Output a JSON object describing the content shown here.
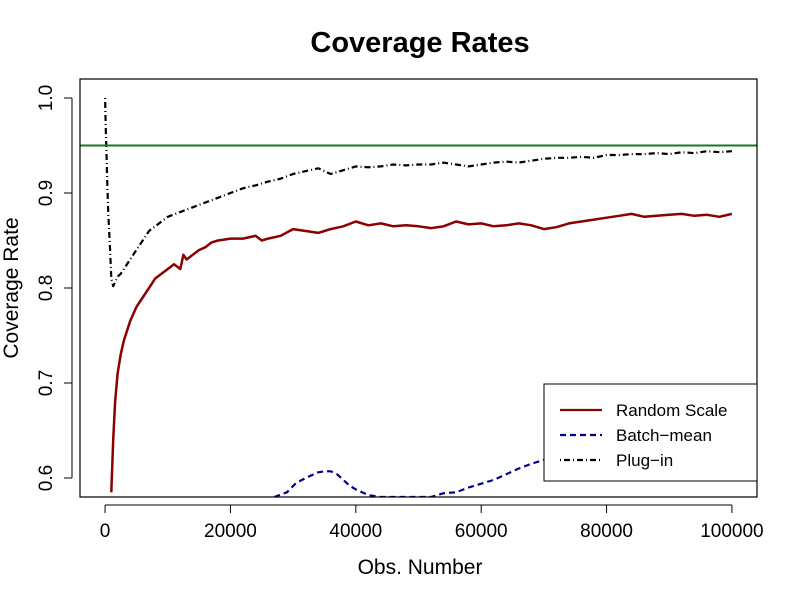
{
  "chart_data": {
    "type": "line",
    "title": "Coverage Rates",
    "xlabel": "Obs. Number",
    "ylabel": "Coverage Rate",
    "xlim": [
      -4000,
      104000
    ],
    "ylim": [
      0.58,
      1.02
    ],
    "x_ticks": [
      0,
      20000,
      40000,
      60000,
      80000,
      100000
    ],
    "x_tick_labels": [
      "0",
      "20000",
      "40000",
      "60000",
      "80000",
      "100000"
    ],
    "y_ticks": [
      0.6,
      0.7,
      0.8,
      0.9,
      1.0
    ],
    "y_tick_labels": [
      "0.6",
      "0.7",
      "0.8",
      "0.9",
      "1.0"
    ],
    "grid": false,
    "legend_position": "bottom-right",
    "reference_line": {
      "y": 0.95,
      "color": "#1a7a1a"
    },
    "series": [
      {
        "name": "Random Scale",
        "color": "#8b0000",
        "style": "solid",
        "x": [
          1000,
          1300,
          1600,
          2000,
          2500,
          3000,
          3500,
          4000,
          5000,
          6000,
          7000,
          8000,
          9000,
          10000,
          11000,
          12000,
          12500,
          13000,
          14000,
          15000,
          16000,
          17000,
          18000,
          19000,
          20000,
          22000,
          24000,
          25000,
          26000,
          28000,
          30000,
          32000,
          34000,
          35000,
          36000,
          38000,
          40000,
          42000,
          44000,
          46000,
          48000,
          50000,
          52000,
          54000,
          56000,
          58000,
          60000,
          62000,
          64000,
          66000,
          68000,
          70000,
          72000,
          74000,
          76000,
          78000,
          80000,
          82000,
          84000,
          86000,
          88000,
          90000,
          92000,
          94000,
          96000,
          98000,
          100000
        ],
        "y": [
          0.585,
          0.64,
          0.68,
          0.71,
          0.73,
          0.745,
          0.755,
          0.765,
          0.78,
          0.79,
          0.8,
          0.81,
          0.815,
          0.82,
          0.825,
          0.82,
          0.835,
          0.83,
          0.835,
          0.84,
          0.843,
          0.848,
          0.85,
          0.851,
          0.852,
          0.852,
          0.855,
          0.85,
          0.852,
          0.855,
          0.862,
          0.86,
          0.858,
          0.86,
          0.862,
          0.865,
          0.87,
          0.866,
          0.868,
          0.865,
          0.866,
          0.865,
          0.863,
          0.865,
          0.87,
          0.867,
          0.868,
          0.865,
          0.866,
          0.868,
          0.866,
          0.862,
          0.864,
          0.868,
          0.87,
          0.872,
          0.874,
          0.876,
          0.878,
          0.875,
          0.876,
          0.877,
          0.878,
          0.876,
          0.877,
          0.875,
          0.878
        ]
      },
      {
        "name": "Batch−mean",
        "color": "#00008b",
        "style": "dashed",
        "x": [
          27000,
          29000,
          30500,
          32000,
          33000,
          34000,
          35000,
          36000,
          37000,
          38000,
          39000,
          40000,
          41000,
          42000,
          44000,
          46000,
          48000,
          50000,
          52000,
          53000,
          54000,
          56000,
          58000,
          60000,
          62000,
          64000,
          66000,
          68000,
          70000,
          72000,
          74000,
          76000,
          78000,
          80000,
          82000,
          84000,
          86000,
          88000,
          90000,
          92000,
          94000,
          96000,
          98000,
          100000
        ],
        "y": [
          0.58,
          0.585,
          0.595,
          0.6,
          0.603,
          0.606,
          0.607,
          0.607,
          0.604,
          0.598,
          0.592,
          0.588,
          0.585,
          0.582,
          0.58,
          0.58,
          0.58,
          0.58,
          0.58,
          0.582,
          0.584,
          0.585,
          0.59,
          0.594,
          0.598,
          0.604,
          0.61,
          0.615,
          0.619,
          0.62,
          0.624,
          0.627,
          0.626,
          0.622,
          0.62,
          0.618,
          0.615,
          0.617,
          0.618,
          0.62,
          0.619,
          0.62,
          0.618,
          0.615
        ]
      },
      {
        "name": "Plug−in",
        "color": "#000000",
        "style": "dotdash",
        "x": [
          0,
          100,
          200,
          300,
          500,
          800,
          1000,
          1300,
          1600,
          2000,
          2500,
          3000,
          4000,
          5000,
          6000,
          7000,
          8000,
          9000,
          10000,
          12000,
          14000,
          16000,
          18000,
          20000,
          22000,
          24000,
          26000,
          28000,
          30000,
          32000,
          34000,
          36000,
          38000,
          40000,
          42000,
          44000,
          46000,
          48000,
          50000,
          52000,
          54000,
          56000,
          58000,
          60000,
          62000,
          64000,
          66000,
          68000,
          70000,
          72000,
          74000,
          76000,
          78000,
          80000,
          82000,
          84000,
          86000,
          88000,
          90000,
          92000,
          94000,
          96000,
          98000,
          100000
        ],
        "y": [
          1.0,
          0.97,
          0.95,
          0.92,
          0.88,
          0.84,
          0.81,
          0.802,
          0.806,
          0.812,
          0.815,
          0.82,
          0.83,
          0.84,
          0.85,
          0.86,
          0.865,
          0.87,
          0.875,
          0.88,
          0.885,
          0.89,
          0.895,
          0.9,
          0.905,
          0.908,
          0.912,
          0.915,
          0.92,
          0.923,
          0.926,
          0.92,
          0.924,
          0.928,
          0.927,
          0.928,
          0.93,
          0.929,
          0.93,
          0.93,
          0.932,
          0.93,
          0.928,
          0.93,
          0.932,
          0.933,
          0.932,
          0.934,
          0.936,
          0.937,
          0.937,
          0.938,
          0.937,
          0.94,
          0.94,
          0.941,
          0.941,
          0.942,
          0.941,
          0.943,
          0.942,
          0.944,
          0.943,
          0.944
        ]
      }
    ]
  }
}
